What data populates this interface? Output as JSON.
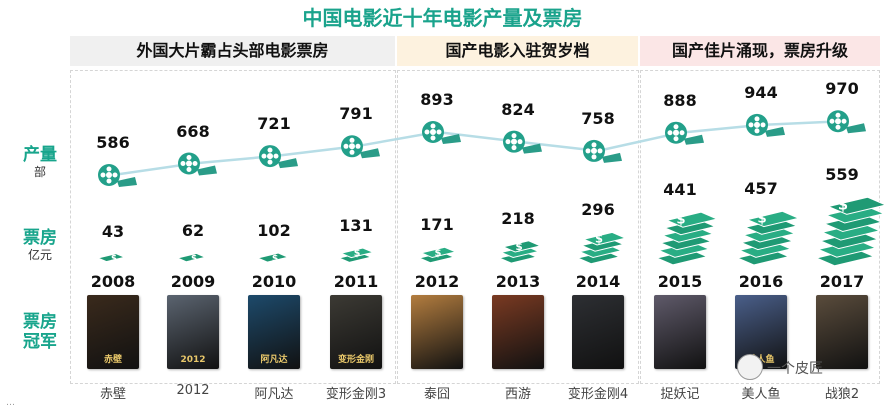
{
  "title": "中国电影近十年电影产量及票房",
  "bands": [
    "外国大片霸占头部电影票房",
    "国产电影入驻贺岁档",
    "国产佳片涌现，票房升级"
  ],
  "row_labels": {
    "output": {
      "main": "产量",
      "unit": "部"
    },
    "box_office": {
      "main": "票房",
      "unit": "亿元"
    },
    "champion": {
      "main": "票房冠军"
    }
  },
  "watermark": "一个皮匠",
  "footer": "…",
  "colors": {
    "accent": "#1aa38c",
    "band1": "#f0f0f0",
    "band2": "#fdf2df",
    "band3": "#fbe6e6",
    "line": "#b7dde6",
    "money": "#1f9a74"
  },
  "chart_data": {
    "type": "line",
    "categories": [
      "2008",
      "2009",
      "2010",
      "2011",
      "2012",
      "2013",
      "2014",
      "2015",
      "2016",
      "2017"
    ],
    "series": [
      {
        "name": "产量",
        "unit": "部",
        "values": [
          586,
          668,
          721,
          791,
          893,
          824,
          758,
          888,
          944,
          970
        ]
      },
      {
        "name": "票房",
        "unit": "亿元",
        "values": [
          43,
          62,
          102,
          131,
          171,
          218,
          296,
          441,
          457,
          559
        ]
      }
    ],
    "champions": [
      "赤壁",
      "2012",
      "阿凡达",
      "变形金刚3",
      "泰囧",
      "西游",
      "变形金刚4",
      "捉妖记",
      "美人鱼",
      "战狼2"
    ],
    "poster_titles": [
      "赤壁",
      "2012",
      "阿凡达",
      "变形金刚",
      "",
      "",
      "",
      "",
      "美人鱼",
      ""
    ]
  }
}
